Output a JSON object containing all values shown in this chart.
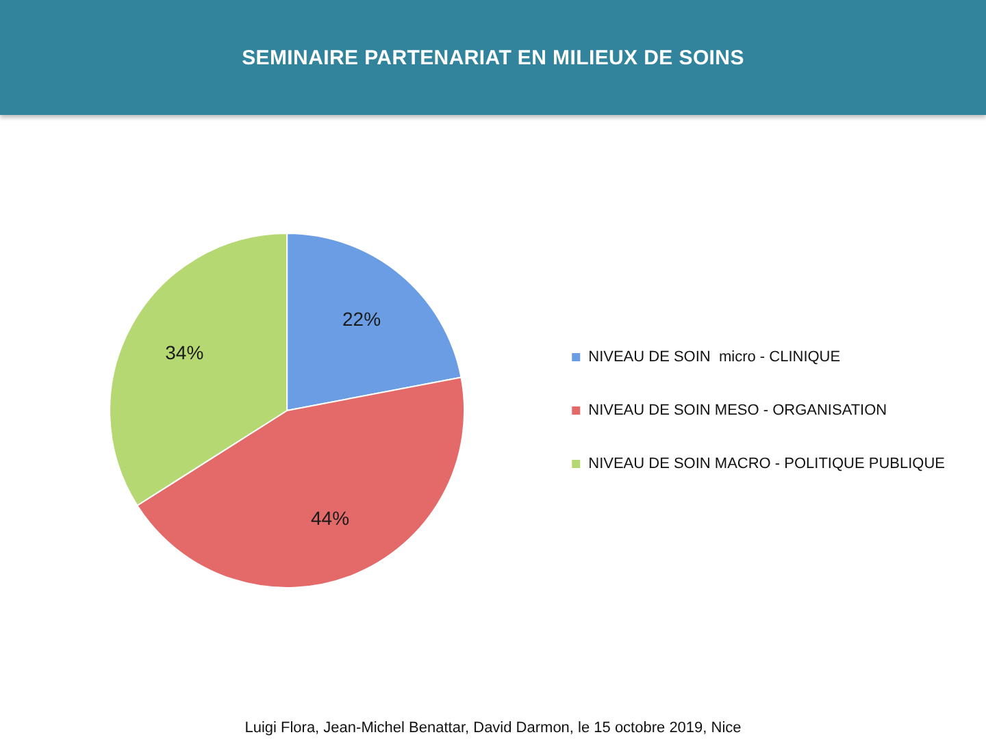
{
  "chart_data": {
    "type": "pie",
    "title": "SEMINAIRE PARTENARIAT EN MILIEUX DE SOINS",
    "categories": [
      "NIVEAU DE SOIN  micro - CLINIQUE",
      "NIVEAU DE SOIN MESO - ORGANISATION",
      "NIVEAU DE SOIN MACRO - POLITIQUE PUBLIQUE"
    ],
    "values": [
      22,
      44,
      34
    ],
    "colors": [
      "#6a9de4",
      "#e46a6a",
      "#b6d873"
    ],
    "value_labels": [
      "22%",
      "44%",
      "34%"
    ],
    "legend": "right",
    "annotations": [
      "Luigi Flora, Jean-Michel Benattar, David Darmon, le 15 octobre 2019, Nice"
    ]
  }
}
